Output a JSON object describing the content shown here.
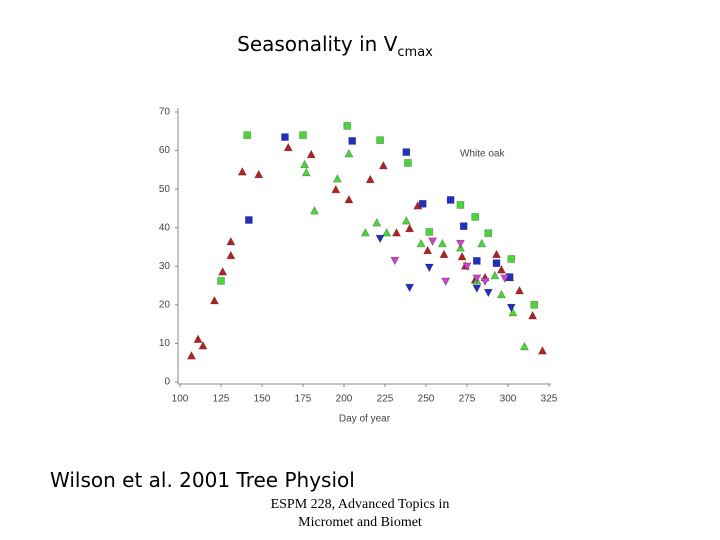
{
  "slide": {
    "title": {
      "text": "Seasonality in V",
      "subscript": "cmax"
    },
    "citation": "Wilson et al. 2001 Tree Physiol",
    "footer": [
      "ESPM 228, Advanced Topics in",
      "Micromet and Biomet"
    ]
  },
  "chart_data": {
    "type": "scatter",
    "xlabel": "Day of year",
    "annotation": "White oak",
    "xlim": [
      100,
      325
    ],
    "xticks": [
      100,
      125,
      150,
      175,
      200,
      225,
      250,
      275,
      300,
      325
    ],
    "ylim": [
      0,
      70
    ],
    "yticks": [
      0,
      10,
      20,
      30,
      40,
      50,
      60,
      70
    ],
    "grid": false,
    "series": [
      {
        "color": "#b22222",
        "marker": "triangle-up",
        "x": [
          107,
          111,
          114,
          121,
          126,
          131,
          131,
          138,
          148,
          166,
          180,
          195,
          203,
          216,
          224,
          232,
          240,
          245,
          251,
          261,
          272,
          274,
          280,
          286,
          293,
          296,
          301,
          307,
          315,
          321
        ],
        "y": [
          6.7,
          11,
          9.3,
          21,
          28.5,
          32.7,
          36.3,
          54.4,
          53.7,
          60.7,
          58.9,
          49.8,
          47.2,
          52.4,
          56,
          38.6,
          39.7,
          45.6,
          34,
          33,
          32.4,
          30,
          26.4,
          27,
          33,
          29,
          27,
          23.6,
          17.1,
          8
        ]
      },
      {
        "color": "#4cd43c",
        "marker": "square",
        "x": [
          125,
          141,
          175,
          202,
          222,
          239,
          252,
          271,
          280,
          288,
          302,
          316
        ],
        "y": [
          26.2,
          64,
          64,
          66.4,
          62.7,
          56.8,
          38.9,
          45.9,
          42.8,
          38.6,
          31.9,
          20
        ]
      },
      {
        "color": "#4cd43c",
        "marker": "triangle-up",
        "x": [
          176,
          177,
          182,
          196,
          203,
          213,
          220,
          226,
          238,
          247,
          260,
          271,
          281,
          284,
          292,
          296,
          303,
          310
        ],
        "y": [
          56.3,
          54.2,
          44.3,
          52.6,
          59.1,
          38.6,
          41.2,
          38.6,
          41.7,
          35.8,
          35.8,
          34.7,
          26.2,
          35.8,
          27.5,
          22.6,
          17.9,
          9.1
        ]
      },
      {
        "color": "#1f2fbf",
        "marker": "square",
        "x": [
          142,
          164,
          205,
          238,
          248,
          265,
          273,
          281,
          293,
          301
        ],
        "y": [
          42,
          63.5,
          62.5,
          59.6,
          46.2,
          47.2,
          40.4,
          31.4,
          30.8,
          27.2
        ]
      },
      {
        "color": "#1f2fbf",
        "marker": "triangle-down",
        "x": [
          222,
          240,
          252,
          281,
          288,
          302
        ],
        "y": [
          37.3,
          24.6,
          29.8,
          24.4,
          23.3,
          19.4
        ]
      },
      {
        "color": "#cc44cc",
        "marker": "triangle-down",
        "x": [
          231,
          254,
          262,
          271,
          275,
          281,
          286,
          298
        ],
        "y": [
          31.6,
          36.6,
          26.2,
          36,
          30.1,
          27,
          26.2,
          27
        ]
      }
    ]
  }
}
